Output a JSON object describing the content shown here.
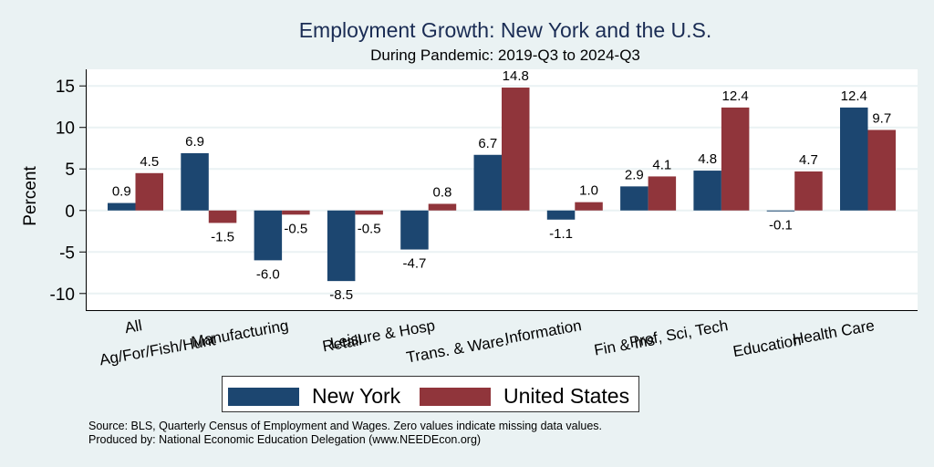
{
  "chart_data": {
    "type": "bar",
    "title": "Employment Growth: New York and the U.S.",
    "subtitle": "During Pandemic: 2019-Q3 to 2024-Q3",
    "ylabel": "Percent",
    "xlabel": "",
    "ylim": [
      -12,
      17
    ],
    "yticks": [
      -10,
      -5,
      0,
      5,
      10,
      15
    ],
    "grid": true,
    "legend_position": "bottom",
    "categories": [
      "All",
      "Ag/For/Fish/Hunt",
      "Manufacturing",
      "Retail",
      "Leisure & Hosp",
      "Trans. & Ware.",
      "Information",
      "Fin & Ins",
      "Prof, Sci, Tech",
      "Education",
      "Health Care"
    ],
    "series": [
      {
        "name": "New York",
        "color": "#1c4670",
        "values": [
          0.9,
          6.9,
          -6.0,
          -8.5,
          -4.7,
          6.7,
          -1.1,
          2.9,
          4.8,
          -0.1,
          12.4
        ]
      },
      {
        "name": "United States",
        "color": "#90353b",
        "values": [
          4.5,
          -1.5,
          -0.5,
          -0.5,
          0.8,
          14.8,
          1.0,
          4.1,
          12.4,
          4.7,
          9.7
        ]
      }
    ]
  },
  "notes": {
    "source": "Source: BLS, Quarterly Census of Employment and Wages. Zero values indicate missing data values.",
    "producer": "Produced by: National Economic Education Delegation (www.NEEDEcon.org)"
  }
}
